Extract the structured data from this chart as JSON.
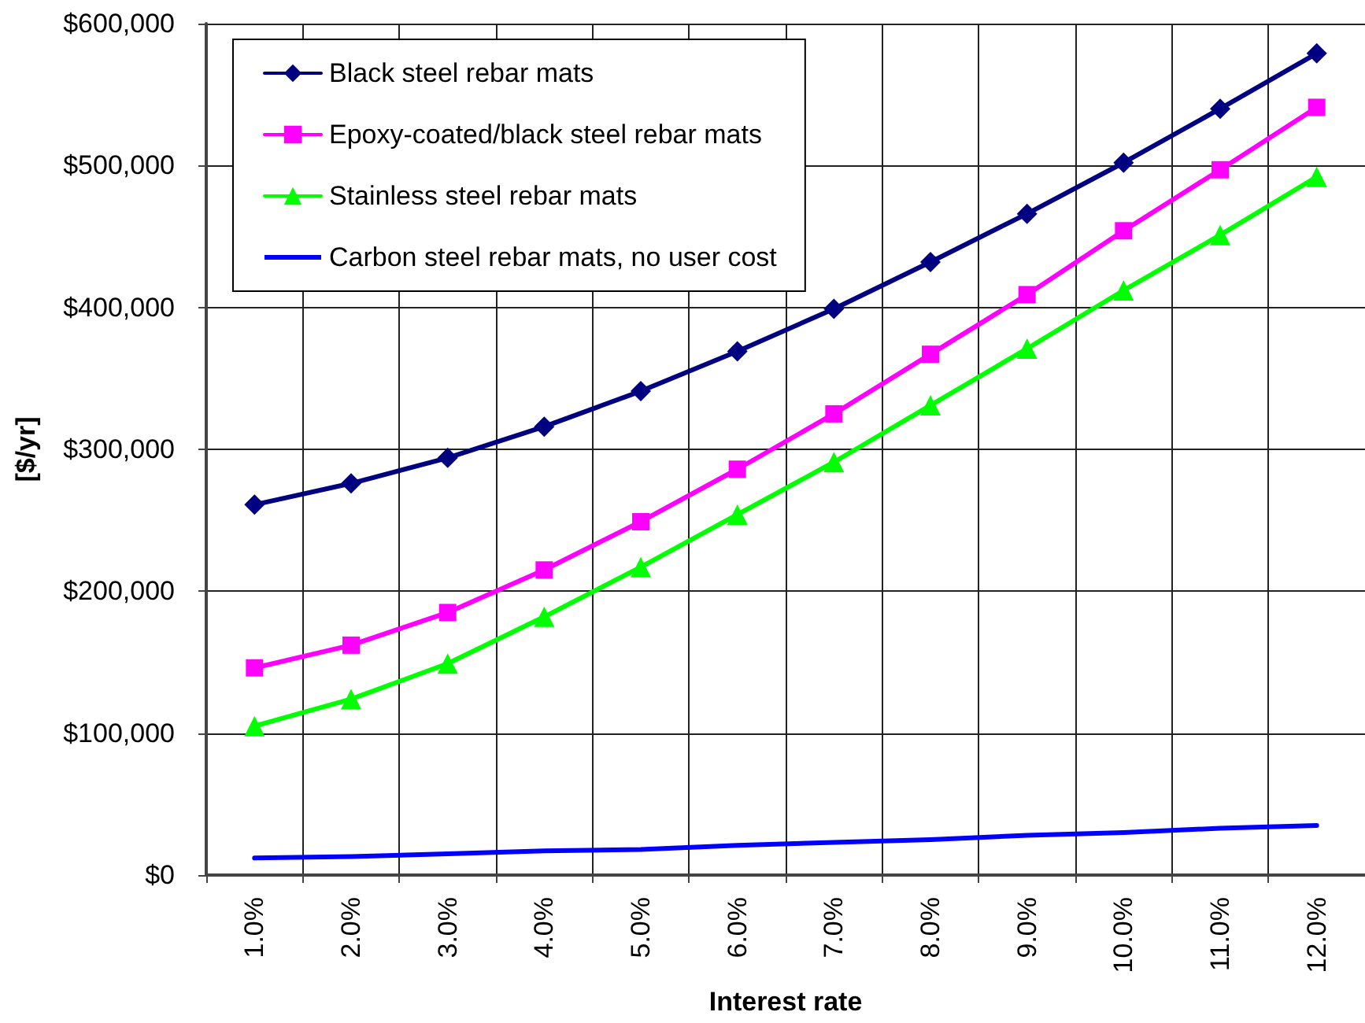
{
  "chart_data": {
    "type": "line",
    "xlabel": "Interest rate",
    "ylabel": "[$/yr]",
    "categories": [
      "1.0%",
      "2.0%",
      "3.0%",
      "4.0%",
      "5.0%",
      "6.0%",
      "7.0%",
      "8.0%",
      "9.0%",
      "10.0%",
      "11.0%",
      "12.0%"
    ],
    "ylim": [
      0,
      600000
    ],
    "yticks": [
      {
        "value": 0,
        "label": "$0"
      },
      {
        "value": 100000,
        "label": "$100,000"
      },
      {
        "value": 200000,
        "label": "$200,000"
      },
      {
        "value": 300000,
        "label": "$300,000"
      },
      {
        "value": 400000,
        "label": "$400,000"
      },
      {
        "value": 500000,
        "label": "$500,000"
      },
      {
        "value": 600000,
        "label": "$600,000"
      }
    ],
    "grid": true,
    "legend": "top left",
    "line_style": "solid",
    "series": [
      {
        "name": "Black steel rebar mats",
        "color": "#000080",
        "marker": "diamond",
        "values": [
          261000,
          276000,
          294000,
          316000,
          341000,
          369000,
          399000,
          432000,
          466000,
          502000,
          540000,
          579000
        ]
      },
      {
        "name": "Epoxy-coated/black steel rebar mats",
        "color": "#ff00ff",
        "marker": "square",
        "values": [
          146000,
          162000,
          185000,
          215000,
          249000,
          286000,
          325000,
          367000,
          409000,
          454000,
          497000,
          541000
        ]
      },
      {
        "name": "Stainless steel rebar mats",
        "color": "#00ff00",
        "marker": "triangle",
        "values": [
          105000,
          124000,
          149000,
          182000,
          217000,
          254000,
          291000,
          331000,
          371000,
          412000,
          451000,
          492000
        ]
      },
      {
        "name": "Carbon steel rebar mats, no user cost",
        "color": "#0000ff",
        "marker": "none",
        "values": [
          12000,
          13000,
          15000,
          17000,
          18000,
          21000,
          23000,
          25000,
          28000,
          30000,
          33000,
          35000
        ]
      }
    ]
  }
}
